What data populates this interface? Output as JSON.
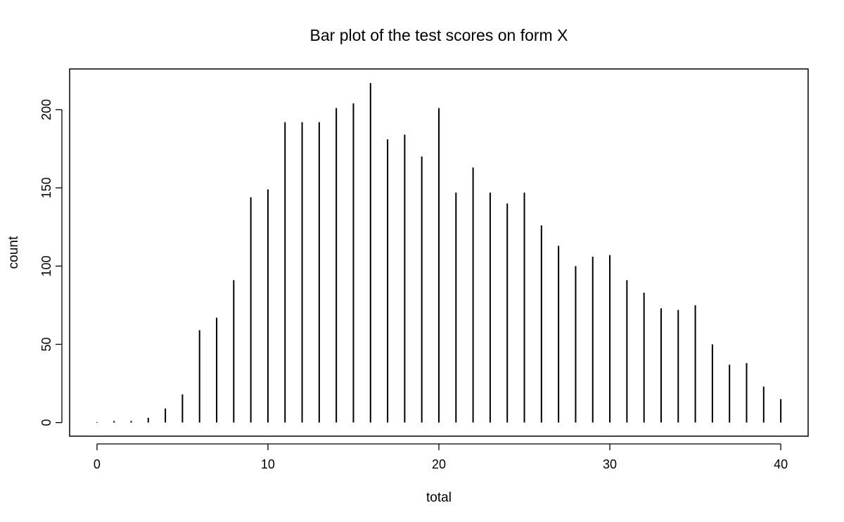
{
  "chart_data": {
    "type": "bar",
    "title": "Bar plot of the test scores on form X",
    "xlabel": "total",
    "ylabel": "count",
    "x": [
      0,
      1,
      2,
      3,
      4,
      5,
      6,
      7,
      8,
      9,
      10,
      11,
      12,
      13,
      14,
      15,
      16,
      17,
      18,
      19,
      20,
      21,
      22,
      23,
      24,
      25,
      26,
      27,
      28,
      29,
      30,
      31,
      32,
      33,
      34,
      35,
      36,
      37,
      38,
      39,
      40
    ],
    "values": [
      0,
      1,
      1,
      3,
      9,
      18,
      59,
      67,
      91,
      144,
      149,
      192,
      192,
      192,
      201,
      204,
      217,
      181,
      184,
      170,
      201,
      147,
      163,
      147,
      140,
      147,
      126,
      113,
      100,
      106,
      107,
      91,
      83,
      73,
      72,
      75,
      50,
      37,
      38,
      23,
      15
    ],
    "xlim": [
      -1.6,
      41.6
    ],
    "ylim": [
      -8.7,
      226
    ],
    "xticks": [
      0,
      10,
      20,
      30,
      40
    ],
    "yticks": [
      0,
      50,
      100,
      150,
      200
    ],
    "grid": false,
    "legend": "none",
    "bar_color": "#000000"
  }
}
